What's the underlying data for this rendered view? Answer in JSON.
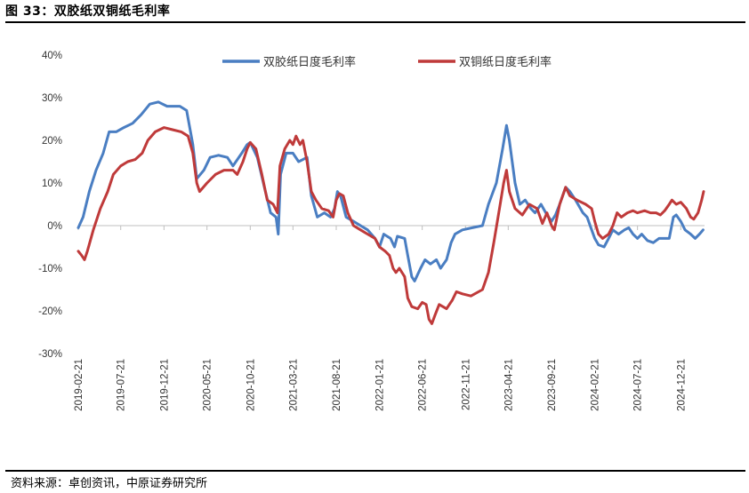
{
  "header": {
    "title": "图 33：双胶纸双铜纸毛利率"
  },
  "footer": {
    "source": "资料来源：卓创资讯，中原证券研究所"
  },
  "colors": {
    "series_a": "#4a7ec2",
    "series_b": "#bf3a3a"
  },
  "chart_data": {
    "type": "line",
    "title": "",
    "xlabel": "",
    "ylabel": "",
    "ylim": [
      -30,
      40
    ],
    "yticks": [
      40,
      30,
      20,
      10,
      0,
      -10,
      -20,
      -30
    ],
    "ytick_labels": [
      "40%",
      "30%",
      "20%",
      "10%",
      "0%",
      "-10%",
      "-20%",
      "-30%"
    ],
    "xlim": [
      "2019-02-21",
      "2025-03-15"
    ],
    "xticks": [
      "2019-02-21",
      "2019-07-21",
      "2019-12-21",
      "2020-05-21",
      "2020-10-21",
      "2021-03-21",
      "2021-08-21",
      "2022-01-21",
      "2022-06-21",
      "2022-11-21",
      "2023-04-21",
      "2023-09-21",
      "2024-02-21",
      "2024-07-21",
      "2024-12-21"
    ],
    "grid": false,
    "legend": "top",
    "series": [
      {
        "name": "双胶纸日度毛利率",
        "points": [
          [
            "2019-02-21",
            -0.5
          ],
          [
            "2019-03-10",
            2
          ],
          [
            "2019-04-01",
            8
          ],
          [
            "2019-04-25",
            13
          ],
          [
            "2019-05-20",
            17
          ],
          [
            "2019-06-10",
            22
          ],
          [
            "2019-07-05",
            22
          ],
          [
            "2019-08-01",
            23
          ],
          [
            "2019-09-01",
            24
          ],
          [
            "2019-10-01",
            26
          ],
          [
            "2019-11-01",
            28.5
          ],
          [
            "2019-12-01",
            29
          ],
          [
            "2020-01-01",
            28
          ],
          [
            "2020-02-15",
            28
          ],
          [
            "2020-03-10",
            27
          ],
          [
            "2020-04-01",
            19
          ],
          [
            "2020-04-15",
            11
          ],
          [
            "2020-05-10",
            13
          ],
          [
            "2020-06-01",
            16
          ],
          [
            "2020-07-01",
            16.5
          ],
          [
            "2020-08-01",
            16
          ],
          [
            "2020-08-21",
            14
          ],
          [
            "2020-09-21",
            17
          ],
          [
            "2020-10-10",
            19
          ],
          [
            "2020-10-21",
            19.5
          ],
          [
            "2020-11-15",
            16
          ],
          [
            "2020-12-10",
            9
          ],
          [
            "2021-01-01",
            3
          ],
          [
            "2021-01-20",
            2
          ],
          [
            "2021-01-28",
            -2
          ],
          [
            "2021-02-05",
            12
          ],
          [
            "2021-02-25",
            17
          ],
          [
            "2021-03-21",
            17
          ],
          [
            "2021-04-10",
            15
          ],
          [
            "2021-05-10",
            16
          ],
          [
            "2021-05-25",
            7
          ],
          [
            "2021-06-15",
            2
          ],
          [
            "2021-07-10",
            3
          ],
          [
            "2021-08-01",
            2
          ],
          [
            "2021-08-15",
            4
          ],
          [
            "2021-08-25",
            8
          ],
          [
            "2021-09-05",
            7
          ],
          [
            "2021-09-25",
            2
          ],
          [
            "2021-10-21",
            1
          ],
          [
            "2021-11-15",
            0
          ],
          [
            "2021-12-10",
            -1
          ],
          [
            "2022-01-05",
            -3
          ],
          [
            "2022-01-21",
            -5
          ],
          [
            "2022-02-05",
            -2
          ],
          [
            "2022-03-01",
            -3
          ],
          [
            "2022-03-15",
            -5
          ],
          [
            "2022-03-25",
            -2.5
          ],
          [
            "2022-04-20",
            -3
          ],
          [
            "2022-05-01",
            -7
          ],
          [
            "2022-05-15",
            -12
          ],
          [
            "2022-05-25",
            -13
          ],
          [
            "2022-06-15",
            -10
          ],
          [
            "2022-07-01",
            -8
          ],
          [
            "2022-07-20",
            -9
          ],
          [
            "2022-08-10",
            -8
          ],
          [
            "2022-08-25",
            -10
          ],
          [
            "2022-09-15",
            -8
          ],
          [
            "2022-10-01",
            -4
          ],
          [
            "2022-10-15",
            -2
          ],
          [
            "2022-11-10",
            -1
          ],
          [
            "2022-12-15",
            -0.5
          ],
          [
            "2023-01-20",
            0
          ],
          [
            "2023-02-10",
            5
          ],
          [
            "2023-03-10",
            10
          ],
          [
            "2023-04-01",
            18
          ],
          [
            "2023-04-15",
            23.5
          ],
          [
            "2023-04-25",
            20
          ],
          [
            "2023-05-15",
            10
          ],
          [
            "2023-06-01",
            5
          ],
          [
            "2023-06-20",
            6
          ],
          [
            "2023-07-10",
            4
          ],
          [
            "2023-07-25",
            3
          ],
          [
            "2023-08-15",
            5
          ],
          [
            "2023-09-01",
            3
          ],
          [
            "2023-09-21",
            1
          ],
          [
            "2023-10-05",
            2.5
          ],
          [
            "2023-10-20",
            5
          ],
          [
            "2023-11-10",
            9
          ],
          [
            "2023-11-25",
            8
          ],
          [
            "2023-12-15",
            6
          ],
          [
            "2024-01-10",
            3
          ],
          [
            "2024-01-25",
            2
          ],
          [
            "2024-02-10",
            -1
          ],
          [
            "2024-02-21",
            -3
          ],
          [
            "2024-03-05",
            -4.5
          ],
          [
            "2024-03-25",
            -5
          ],
          [
            "2024-04-10",
            -3
          ],
          [
            "2024-04-25",
            -1
          ],
          [
            "2024-05-15",
            -2
          ],
          [
            "2024-06-05",
            -1
          ],
          [
            "2024-06-20",
            -0.5
          ],
          [
            "2024-07-05",
            -2
          ],
          [
            "2024-07-21",
            -3
          ],
          [
            "2024-08-05",
            -2
          ],
          [
            "2024-08-25",
            -3.5
          ],
          [
            "2024-09-15",
            -4
          ],
          [
            "2024-10-05",
            -3
          ],
          [
            "2024-10-25",
            -3
          ],
          [
            "2024-11-10",
            -3
          ],
          [
            "2024-11-25",
            2
          ],
          [
            "2024-12-05",
            2.5
          ],
          [
            "2024-12-21",
            1
          ],
          [
            "2025-01-05",
            -1
          ],
          [
            "2025-01-25",
            -2
          ],
          [
            "2025-02-10",
            -3
          ],
          [
            "2025-02-25",
            -2
          ],
          [
            "2025-03-10",
            -1
          ]
        ]
      },
      {
        "name": "双铜纸日度毛利率",
        "points": [
          [
            "2019-02-21",
            -6
          ],
          [
            "2019-03-05",
            -7
          ],
          [
            "2019-03-15",
            -8
          ],
          [
            "2019-03-25",
            -6
          ],
          [
            "2019-04-15",
            -1
          ],
          [
            "2019-05-10",
            4
          ],
          [
            "2019-06-05",
            8
          ],
          [
            "2019-06-25",
            12
          ],
          [
            "2019-07-21",
            14
          ],
          [
            "2019-08-15",
            15
          ],
          [
            "2019-09-10",
            15.5
          ],
          [
            "2019-10-05",
            17
          ],
          [
            "2019-10-25",
            20
          ],
          [
            "2019-11-20",
            22
          ],
          [
            "2019-12-21",
            23
          ],
          [
            "2020-01-20",
            22.5
          ],
          [
            "2020-02-20",
            22
          ],
          [
            "2020-03-15",
            21
          ],
          [
            "2020-04-01",
            17
          ],
          [
            "2020-04-15",
            10
          ],
          [
            "2020-04-25",
            8
          ],
          [
            "2020-05-21",
            10
          ],
          [
            "2020-06-20",
            12
          ],
          [
            "2020-07-20",
            13
          ],
          [
            "2020-08-21",
            13
          ],
          [
            "2020-09-05",
            12
          ],
          [
            "2020-09-25",
            15
          ],
          [
            "2020-10-10",
            18
          ],
          [
            "2020-10-21",
            19.5
          ],
          [
            "2020-11-10",
            18
          ],
          [
            "2020-12-01",
            12
          ],
          [
            "2020-12-20",
            6
          ],
          [
            "2021-01-10",
            5
          ],
          [
            "2021-01-25",
            3
          ],
          [
            "2021-02-03",
            14
          ],
          [
            "2021-02-20",
            18
          ],
          [
            "2021-03-10",
            20
          ],
          [
            "2021-03-21",
            19
          ],
          [
            "2021-04-01",
            21
          ],
          [
            "2021-04-15",
            19
          ],
          [
            "2021-04-25",
            20
          ],
          [
            "2021-05-10",
            15
          ],
          [
            "2021-05-25",
            8
          ],
          [
            "2021-06-10",
            6
          ],
          [
            "2021-07-01",
            4
          ],
          [
            "2021-07-25",
            3.5
          ],
          [
            "2021-08-10",
            2
          ],
          [
            "2021-08-21",
            6
          ],
          [
            "2021-09-01",
            7.5
          ],
          [
            "2021-09-15",
            7
          ],
          [
            "2021-10-01",
            3
          ],
          [
            "2021-10-21",
            0
          ],
          [
            "2021-11-15",
            -1
          ],
          [
            "2021-12-10",
            -2
          ],
          [
            "2022-01-05",
            -3
          ],
          [
            "2022-01-21",
            -5
          ],
          [
            "2022-02-10",
            -6
          ],
          [
            "2022-02-25",
            -7
          ],
          [
            "2022-03-10",
            -10
          ],
          [
            "2022-03-20",
            -11
          ],
          [
            "2022-04-01",
            -10
          ],
          [
            "2022-04-20",
            -12
          ],
          [
            "2022-05-01",
            -17
          ],
          [
            "2022-05-15",
            -19
          ],
          [
            "2022-06-05",
            -19.5
          ],
          [
            "2022-06-21",
            -18
          ],
          [
            "2022-07-05",
            -18.5
          ],
          [
            "2022-07-15",
            -22
          ],
          [
            "2022-07-25",
            -23
          ],
          [
            "2022-08-05",
            -21
          ],
          [
            "2022-08-20",
            -18.5
          ],
          [
            "2022-09-15",
            -19.5
          ],
          [
            "2022-10-05",
            -17.5
          ],
          [
            "2022-10-20",
            -15.5
          ],
          [
            "2022-11-10",
            -16
          ],
          [
            "2022-12-10",
            -16.5
          ],
          [
            "2023-01-20",
            -15
          ],
          [
            "2023-02-10",
            -11
          ],
          [
            "2023-03-01",
            -4
          ],
          [
            "2023-03-21",
            4
          ],
          [
            "2023-04-05",
            10
          ],
          [
            "2023-04-15",
            13
          ],
          [
            "2023-04-25",
            8
          ],
          [
            "2023-05-15",
            4
          ],
          [
            "2023-06-10",
            2.5
          ],
          [
            "2023-07-05",
            5
          ],
          [
            "2023-08-01",
            4
          ],
          [
            "2023-08-20",
            0.5
          ],
          [
            "2023-09-05",
            3
          ],
          [
            "2023-09-21",
            0
          ],
          [
            "2023-10-01",
            -1
          ],
          [
            "2023-10-20",
            5
          ],
          [
            "2023-11-10",
            9
          ],
          [
            "2023-11-25",
            7
          ],
          [
            "2023-12-20",
            6
          ],
          [
            "2024-01-20",
            5
          ],
          [
            "2024-02-10",
            4
          ],
          [
            "2024-02-21",
            1
          ],
          [
            "2024-03-05",
            -2
          ],
          [
            "2024-03-20",
            -3
          ],
          [
            "2024-04-10",
            -2
          ],
          [
            "2024-04-25",
            0
          ],
          [
            "2024-05-10",
            3
          ],
          [
            "2024-05-25",
            2
          ],
          [
            "2024-06-15",
            3
          ],
          [
            "2024-07-05",
            3.5
          ],
          [
            "2024-07-21",
            3
          ],
          [
            "2024-08-15",
            3.5
          ],
          [
            "2024-09-05",
            3
          ],
          [
            "2024-09-25",
            3
          ],
          [
            "2024-10-10",
            2.5
          ],
          [
            "2024-10-25",
            3.5
          ],
          [
            "2024-11-10",
            5
          ],
          [
            "2024-11-20",
            6
          ],
          [
            "2024-12-05",
            5
          ],
          [
            "2024-12-21",
            5.5
          ],
          [
            "2025-01-10",
            4
          ],
          [
            "2025-01-25",
            2
          ],
          [
            "2025-02-05",
            1.5
          ],
          [
            "2025-02-20",
            3
          ],
          [
            "2025-03-05",
            6
          ],
          [
            "2025-03-12",
            8
          ]
        ]
      }
    ]
  }
}
